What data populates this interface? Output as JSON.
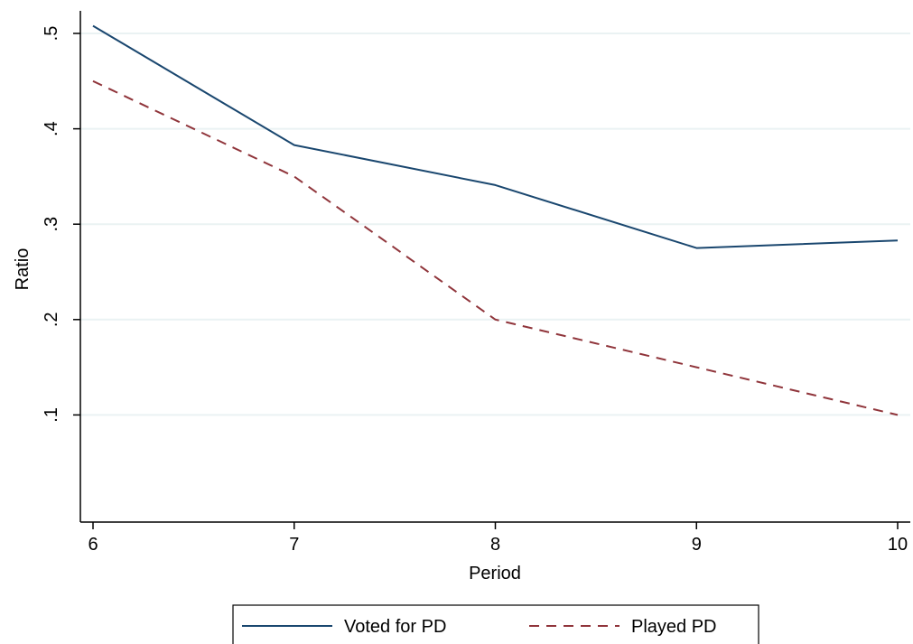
{
  "chart_data": {
    "type": "line",
    "xlabel": "Period",
    "ylabel": "Ratio",
    "x": [
      6,
      7,
      8,
      9,
      10
    ],
    "xlim": [
      6,
      10
    ],
    "ylim": [
      0,
      0.5
    ],
    "x_ticks": [
      {
        "value": 6,
        "label": "6"
      },
      {
        "value": 7,
        "label": "7"
      },
      {
        "value": 8,
        "label": "8"
      },
      {
        "value": 9,
        "label": "9"
      },
      {
        "value": 10,
        "label": "10"
      }
    ],
    "y_ticks": [
      {
        "value": 0.1,
        "label": ".1"
      },
      {
        "value": 0.2,
        "label": ".2"
      },
      {
        "value": 0.3,
        "label": ".3"
      },
      {
        "value": 0.4,
        "label": ".4"
      },
      {
        "value": 0.5,
        "label": ".5"
      }
    ],
    "grid": "horizontal",
    "legend_position": "bottom",
    "series": [
      {
        "name": "Voted for PD",
        "values": [
          0.508,
          0.383,
          0.341,
          0.275,
          0.283
        ],
        "color": "#1a476f",
        "style": "solid"
      },
      {
        "name": "Played PD",
        "values": [
          0.45,
          0.35,
          0.2,
          0.15,
          0.1
        ],
        "color": "#90353b",
        "style": "dashed"
      }
    ]
  }
}
